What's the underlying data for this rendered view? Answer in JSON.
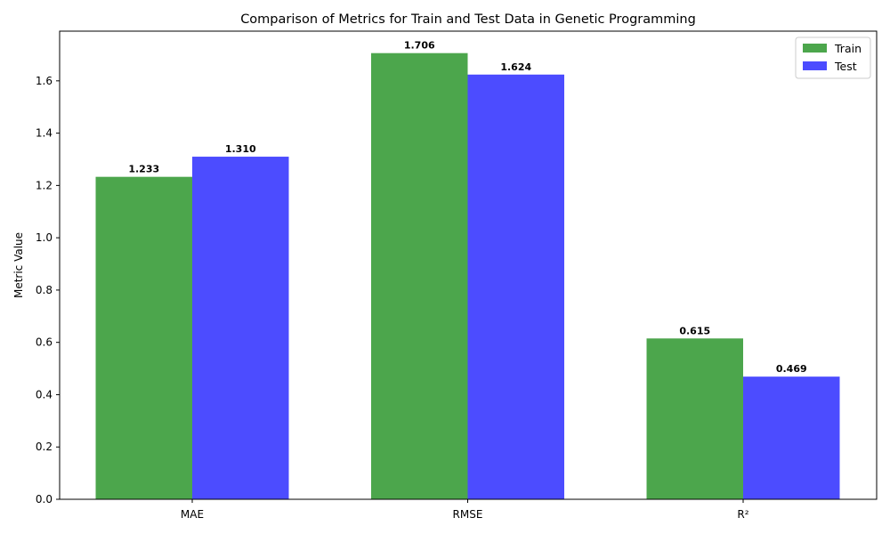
{
  "chart_data": {
    "type": "bar",
    "title": "Comparison of Metrics for Train and Test Data in Genetic Programming",
    "xlabel": "",
    "ylabel": "Metric Value",
    "categories": [
      "MAE",
      "RMSE",
      "R²"
    ],
    "series": [
      {
        "name": "Train",
        "values": [
          1.233,
          1.706,
          0.615
        ],
        "color": "#4ca64c"
      },
      {
        "name": "Test",
        "values": [
          1.31,
          1.624,
          0.469
        ],
        "color": "#4c4cff"
      }
    ],
    "data_labels": [
      [
        "1.233",
        "1.706",
        "0.615"
      ],
      [
        "1.310",
        "1.624",
        "0.469"
      ]
    ],
    "ylim": [
      0,
      1.79
    ],
    "yticks": [
      0.0,
      0.2,
      0.4,
      0.6,
      0.8,
      1.0,
      1.2,
      1.4,
      1.6
    ],
    "ytick_labels": [
      "0.0",
      "0.2",
      "0.4",
      "0.6",
      "0.8",
      "1.0",
      "1.2",
      "1.4",
      "1.6"
    ],
    "grid": false,
    "legend_position": "top-right"
  }
}
